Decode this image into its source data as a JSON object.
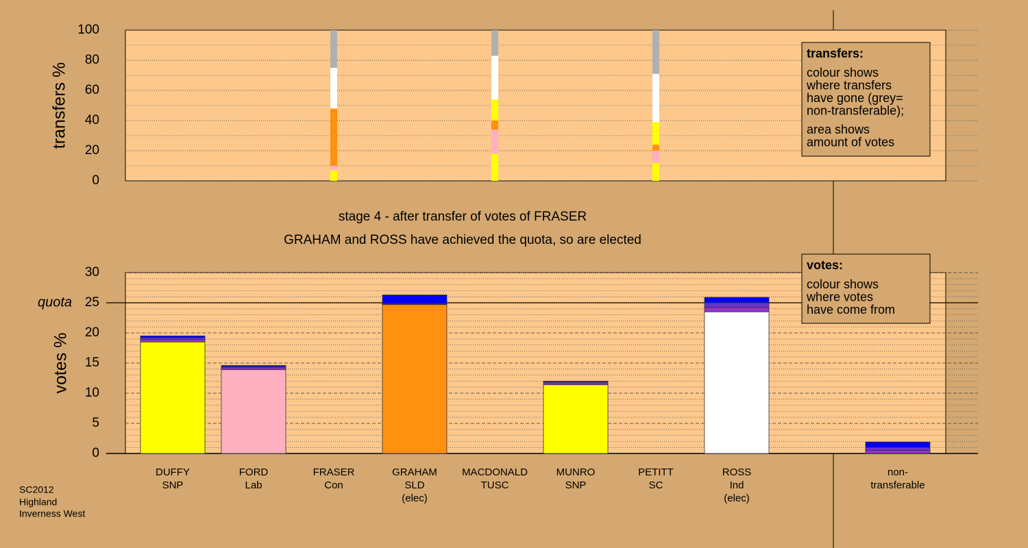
{
  "charts": [
    {
      "type": "stacked_bar",
      "ylabel": "transfers %",
      "ylim": [
        0,
        100
      ],
      "yticks": [
        0,
        20,
        40,
        60,
        80,
        100
      ],
      "minor_yticks": [
        10,
        30,
        50,
        70,
        90
      ],
      "legend_title": "transfers:",
      "legend_notes": [
        [
          "colour shows",
          "where transfers",
          "have gone (grey=",
          "non-transferable);"
        ],
        [
          "area shows",
          "amount of votes"
        ]
      ],
      "series": [
        {
          "color": "#ffff00",
          "values": [
            null,
            null,
            7,
            null,
            18,
            null,
            12,
            null,
            null
          ]
        },
        {
          "color": "#ffb0c0",
          "values": [
            null,
            null,
            3,
            null,
            16,
            null,
            8,
            null,
            null
          ]
        },
        {
          "color": "#ff9010",
          "values": [
            null,
            null,
            38,
            null,
            6,
            null,
            4,
            null,
            null
          ]
        },
        {
          "color": "#ffff00",
          "values": [
            null,
            null,
            0,
            null,
            14,
            null,
            15,
            null,
            null
          ]
        },
        {
          "color": "#ffffff",
          "values": [
            null,
            null,
            27,
            null,
            29,
            null,
            32,
            null,
            null
          ]
        },
        {
          "color": "#b0b0b0",
          "values": [
            null,
            null,
            25,
            null,
            17,
            null,
            29,
            null,
            null
          ]
        }
      ]
    },
    {
      "type": "stacked_bar",
      "title": "stage 4 - after transfer of votes of FRASER",
      "subtitle": "GRAHAM and ROSS have achieved the quota, so are elected",
      "ylabel": "votes %",
      "categories": [
        "DUFFY",
        "FORD",
        "FRASER",
        "GRAHAM",
        "MACDONALD",
        "MUNRO",
        "PETITT",
        "ROSS",
        "non-transferable"
      ],
      "parties": [
        "SNP",
        "Lab",
        "Con",
        "SLD",
        "TUSC",
        "SNP",
        "SC",
        "Ind",
        null
      ],
      "status": [
        null,
        null,
        null,
        "(elec)",
        null,
        null,
        null,
        "(elec)",
        null
      ],
      "ylim": [
        0,
        30
      ],
      "yticks": [
        0,
        5,
        10,
        15,
        20,
        25,
        30
      ],
      "minor_yticks": [
        1,
        2,
        3,
        4,
        6,
        7,
        8,
        9,
        11,
        12,
        13,
        14,
        16,
        17,
        18,
        19,
        21,
        22,
        23,
        24,
        26,
        27,
        28,
        29
      ],
      "quota": {
        "value": 25,
        "label": "quota"
      },
      "legend_title": "votes:",
      "legend_notes": [
        [
          "colour shows",
          "where votes",
          "have come from"
        ]
      ],
      "series": [
        {
          "colors": [
            "#ffff00",
            "#ffb0c0",
            "#0000ff",
            "#ff9010",
            "#9933cc",
            "#ffff00",
            "#6633cc",
            "#ffffff",
            "#b0b0b0"
          ],
          "values": [
            18.5,
            13.9,
            0,
            24.7,
            0,
            11.4,
            0,
            23.5,
            0
          ]
        },
        {
          "color": "#9933cc",
          "values": [
            0.4,
            0.3,
            0,
            0.1,
            0,
            0.3,
            0,
            0.7,
            0.5
          ]
        },
        {
          "color": "#6633cc",
          "values": [
            0.3,
            0.2,
            0,
            0.1,
            0,
            0.2,
            0,
            0.8,
            0.5
          ]
        },
        {
          "color": "#0000ff",
          "values": [
            0.3,
            0.2,
            0,
            1.4,
            0,
            0.1,
            0,
            0.9,
            0.9
          ]
        }
      ]
    }
  ],
  "footer": [
    "SC2012",
    "Highland",
    "Inverness West"
  ]
}
